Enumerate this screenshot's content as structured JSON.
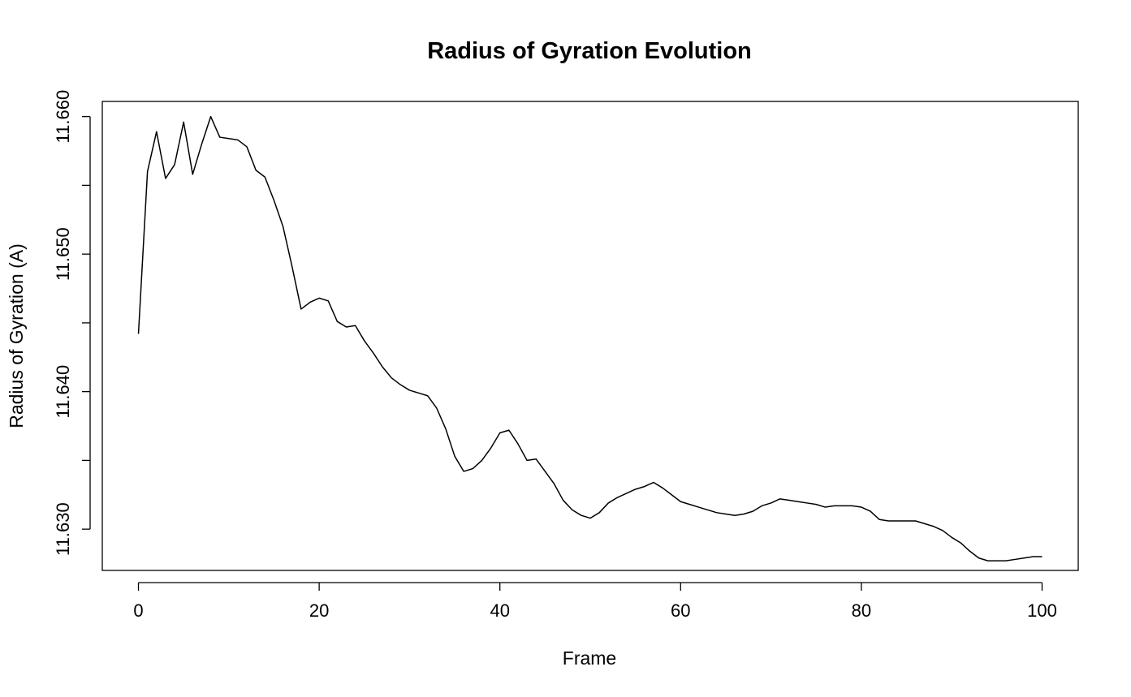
{
  "chart_data": {
    "type": "line",
    "title": "Radius of Gyration Evolution",
    "xlabel": "Frame",
    "ylabel": "Radius of Gyration (A)",
    "xlim": [
      -4,
      104
    ],
    "ylim": [
      11.627,
      11.6611
    ],
    "x_ticks": [
      0,
      20,
      40,
      60,
      80,
      100
    ],
    "x_tick_labels": [
      "0",
      "20",
      "40",
      "60",
      "80",
      "100"
    ],
    "y_ticks": [
      11.63,
      11.635,
      11.64,
      11.645,
      11.65,
      11.655,
      11.66
    ],
    "y_tick_labels": [
      "11.630",
      "",
      "11.640",
      "",
      "11.650",
      "",
      "11.660"
    ],
    "grid": false,
    "legend": "none",
    "line_color": "#000000",
    "series": [
      {
        "x": [
          0,
          1,
          2,
          3,
          4,
          5,
          6,
          7,
          8,
          9,
          10,
          11,
          12,
          13,
          14,
          15,
          16,
          17,
          18,
          19,
          20,
          21,
          22,
          23,
          24,
          25,
          26,
          27,
          28,
          29,
          30,
          31,
          32,
          33,
          34,
          35,
          36,
          37,
          38,
          39,
          40,
          41,
          42,
          43,
          44,
          45,
          46,
          47,
          48,
          49,
          50,
          51,
          52,
          53,
          54,
          55,
          56,
          57,
          58,
          59,
          60,
          61,
          62,
          63,
          64,
          65,
          66,
          67,
          68,
          69,
          70,
          71,
          72,
          73,
          74,
          75,
          76,
          77,
          78,
          79,
          80,
          81,
          82,
          83,
          84,
          85,
          86,
          87,
          88,
          89,
          90,
          91,
          92,
          93,
          94,
          95,
          96,
          97,
          98,
          99,
          100
        ],
        "values": [
          11.6442,
          11.656,
          11.6589,
          11.6555,
          11.6565,
          11.6596,
          11.6558,
          11.658,
          11.66,
          11.6585,
          11.6584,
          11.6583,
          11.6578,
          11.6561,
          11.6556,
          11.6539,
          11.652,
          11.6491,
          11.646,
          11.6465,
          11.6468,
          11.6466,
          11.6451,
          11.6447,
          11.6448,
          11.6437,
          11.6428,
          11.6418,
          11.641,
          11.6405,
          11.6401,
          11.6399,
          11.6397,
          11.6388,
          11.6373,
          11.6353,
          11.6342,
          11.6344,
          11.635,
          11.6359,
          11.637,
          11.6372,
          11.6362,
          11.635,
          11.6351,
          11.6342,
          11.6333,
          11.6321,
          11.6314,
          11.631,
          11.6308,
          11.6312,
          11.6319,
          11.6323,
          11.6326,
          11.6329,
          11.6331,
          11.6334,
          11.633,
          11.6325,
          11.632,
          11.6318,
          11.6316,
          11.6314,
          11.6312,
          11.6311,
          11.631,
          11.6311,
          11.6313,
          11.6317,
          11.6319,
          11.6322,
          11.6321,
          11.632,
          11.6319,
          11.6318,
          11.6316,
          11.6317,
          11.6317,
          11.6317,
          11.6316,
          11.6313,
          11.6307,
          11.6306,
          11.6306,
          11.6306,
          11.6306,
          11.6304,
          11.6302,
          11.6299,
          11.6294,
          11.629,
          11.6284,
          11.6279,
          11.6277,
          11.6277,
          11.6277,
          11.6278,
          11.6279,
          11.628,
          11.628
        ]
      }
    ]
  }
}
